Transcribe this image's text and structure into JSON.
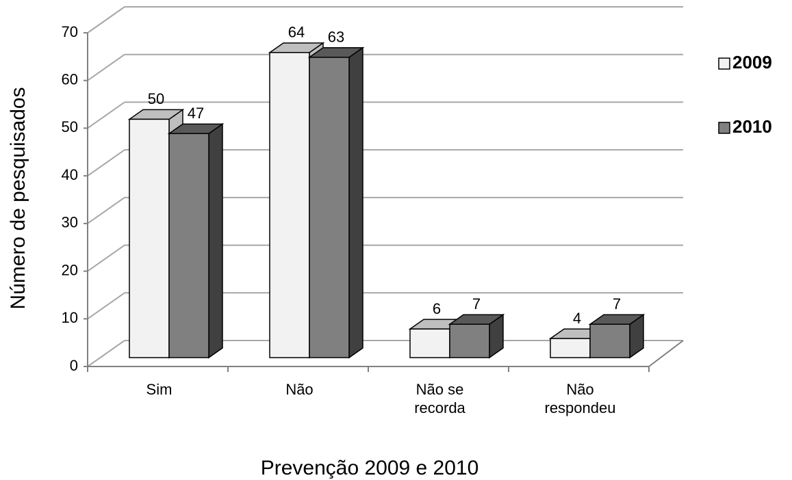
{
  "chart_data": {
    "type": "bar3d",
    "x_label": "Prevenção 2009 e 2010",
    "y_label": "Número de pesquisados",
    "categories": [
      "Sim",
      "Não",
      "Não se recorda",
      "Não respondeu"
    ],
    "series": [
      {
        "name": "2009",
        "color": "#f2f2f2",
        "values": [
          50,
          64,
          6,
          4
        ]
      },
      {
        "name": "2010",
        "color": "#808080",
        "values": [
          47,
          63,
          7,
          7
        ]
      }
    ],
    "ylim": [
      0,
      70
    ],
    "yticks": [
      0,
      10,
      20,
      30,
      40,
      50,
      60,
      70
    ],
    "grid": true,
    "legend": "right"
  }
}
